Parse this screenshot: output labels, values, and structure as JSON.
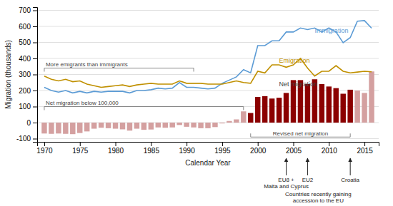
{
  "chart_data": {
    "type": "bar",
    "xlabel": "Calendar Year",
    "ylabel": "Migration (thousands)",
    "x": [
      1970,
      1971,
      1972,
      1973,
      1974,
      1975,
      1976,
      1977,
      1978,
      1979,
      1980,
      1981,
      1982,
      1983,
      1984,
      1985,
      1986,
      1987,
      1988,
      1989,
      1990,
      1991,
      1992,
      1993,
      1994,
      1995,
      1996,
      1997,
      1998,
      1999,
      2000,
      2001,
      2002,
      2003,
      2004,
      2005,
      2006,
      2007,
      2008,
      2009,
      2010,
      2011,
      2012,
      2013,
      2014,
      2015,
      2016
    ],
    "xlim": [
      1969,
      2017
    ],
    "xticks": [
      1970,
      1975,
      1980,
      1985,
      1990,
      1995,
      2000,
      2005,
      2010,
      2015
    ],
    "ylim": [
      -120,
      720
    ],
    "yticks": [
      -100,
      0,
      100,
      200,
      300,
      400,
      500,
      600,
      700
    ],
    "grid": "y",
    "series": [
      {
        "type": "bar",
        "values": [
          -68,
          -70,
          -68,
          -70,
          -72,
          -65,
          -55,
          -38,
          -32,
          -35,
          -38,
          -42,
          -50,
          -38,
          -45,
          -43,
          -30,
          -32,
          -30,
          -15,
          -26,
          -30,
          -35,
          -35,
          -28,
          -5,
          10,
          20,
          70,
          60,
          160,
          165,
          150,
          155,
          185,
          265,
          265,
          240,
          270,
          240,
          225,
          215,
          180,
          205,
          200,
          185,
          319
        ],
        "colors": [
          "#d4a0a0",
          "#d4a0a0",
          "#d4a0a0",
          "#d4a0a0",
          "#d4a0a0",
          "#d4a0a0",
          "#d4a0a0",
          "#d4a0a0",
          "#d4a0a0",
          "#d4a0a0",
          "#d4a0a0",
          "#d4a0a0",
          "#d4a0a0",
          "#d4a0a0",
          "#d4a0a0",
          "#d4a0a0",
          "#d4a0a0",
          "#d4a0a0",
          "#d4a0a0",
          "#d4a0a0",
          "#d4a0a0",
          "#d4a0a0",
          "#d4a0a0",
          "#d4a0a0",
          "#d4a0a0",
          "#d4a0a0",
          "#d4a0a0",
          "#d4a0a0",
          "#d4a0a0",
          "#8b0000",
          "#8b0000",
          "#8b0000",
          "#8b0000",
          "#8b0000",
          "#8b0000",
          "#8b0000",
          "#8b0000",
          "#8b0000",
          "#8b0000",
          "#8b0000",
          "#8b0000",
          "#8b0000",
          "#8b0000",
          "#8b0000",
          "#d4a0a0",
          "#d4a0a0",
          "#d4a0a0"
        ]
      },
      {
        "type": "line",
        "color": "#5b9bd5",
        "values": [
          220,
          200,
          190,
          200,
          185,
          195,
          185,
          195,
          190,
          195,
          195,
          195,
          185,
          200,
          200,
          205,
          215,
          210,
          215,
          250,
          220,
          220,
          215,
          210,
          215,
          245,
          265,
          285,
          330,
          310,
          480,
          480,
          510,
          510,
          565,
          565,
          590,
          580,
          590,
          565,
          590,
          565,
          498,
          530,
          632,
          636,
          589
        ]
      },
      {
        "type": "line",
        "color": "#c09000",
        "values": [
          290,
          270,
          260,
          270,
          255,
          260,
          240,
          230,
          220,
          225,
          230,
          235,
          225,
          235,
          240,
          245,
          240,
          240,
          240,
          260,
          245,
          245,
          245,
          240,
          240,
          240,
          250,
          260,
          250,
          245,
          320,
          310,
          360,
          360,
          345,
          360,
          400,
          340,
          290,
          320,
          320,
          355,
          320,
          310,
          315,
          320,
          317
        ]
      }
    ],
    "annotations": [
      {
        "text": "More emigrants than immigrants",
        "x": [
          1970,
          1991
        ],
        "y": 340
      },
      {
        "text": "Net migration below 100,000",
        "x": [
          1970,
          1998
        ],
        "y": 100
      },
      {
        "text": "Revised net migration",
        "x": [
          1999,
          2013
        ],
        "y": -90
      },
      {
        "text": "Immigration",
        "x": 2008,
        "y": 558,
        "color": "#5b9bd5"
      },
      {
        "text": "Emigration",
        "x": 2003,
        "y": 375,
        "color": "#c09000"
      },
      {
        "text": "Net migration",
        "x": 2003,
        "y": 228
      },
      {
        "text": "EU8 +\nMalta and Cyprus",
        "x": 2004
      },
      {
        "text": "EU2",
        "x": 2007
      },
      {
        "text": "Croatia",
        "x": 2013
      },
      {
        "text": "Countries recently gaining\naccession to the EU"
      }
    ]
  }
}
